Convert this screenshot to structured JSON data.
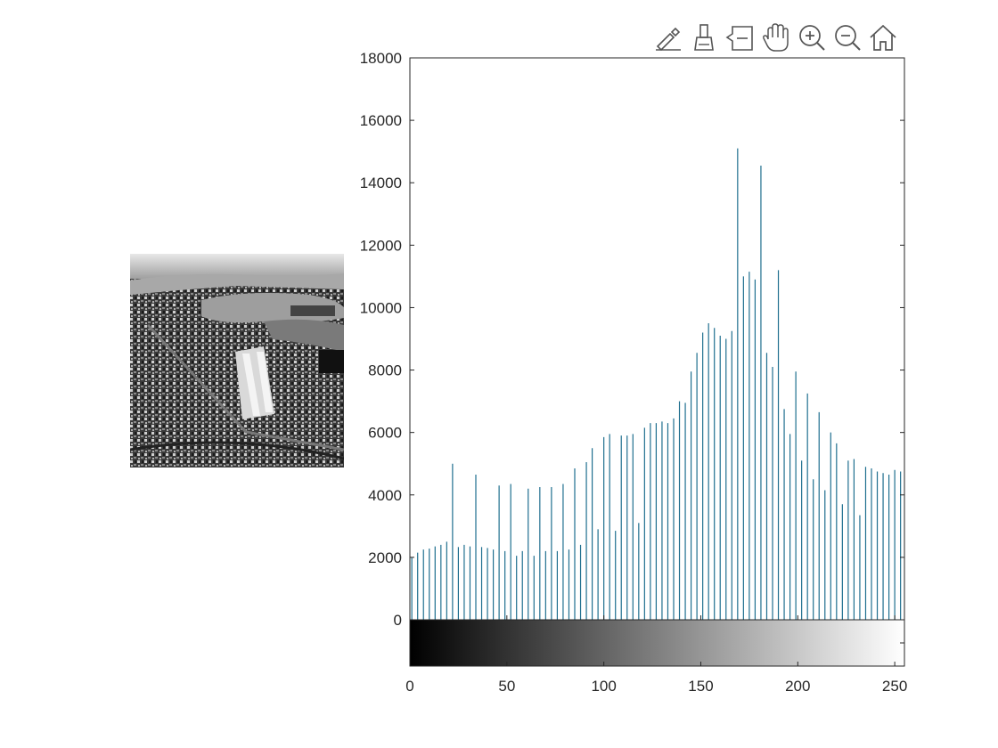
{
  "toolbar": {
    "buttons": [
      {
        "name": "brush-edit-icon"
      },
      {
        "name": "data-brush-icon"
      },
      {
        "name": "data-tips-icon"
      },
      {
        "name": "pan-icon"
      },
      {
        "name": "zoom-in-icon"
      },
      {
        "name": "zoom-out-icon"
      },
      {
        "name": "home-icon"
      }
    ]
  },
  "colors": {
    "stem": "#1f6f8f",
    "axis": "#262626"
  },
  "chart_data": {
    "type": "bar",
    "title": "",
    "xlabel": "",
    "ylabel": "",
    "xlim": [
      0,
      255
    ],
    "ylim": [
      0,
      18000
    ],
    "xticks": [
      "0",
      "50",
      "100",
      "150",
      "200",
      "250"
    ],
    "yticks": [
      "0",
      "2000",
      "4000",
      "6000",
      "8000",
      "10000",
      "12000",
      "14000",
      "16000",
      "18000"
    ],
    "colorbar": "grayscale 0-255",
    "x": [
      1,
      4,
      7,
      10,
      13,
      16,
      19,
      22,
      25,
      28,
      31,
      34,
      37,
      40,
      43,
      46,
      49,
      52,
      55,
      58,
      61,
      64,
      67,
      70,
      73,
      76,
      79,
      82,
      85,
      88,
      91,
      94,
      97,
      100,
      103,
      106,
      109,
      112,
      115,
      118,
      121,
      124,
      127,
      130,
      133,
      136,
      139,
      142,
      145,
      148,
      151,
      154,
      157,
      160,
      163,
      166,
      169,
      172,
      175,
      178,
      181,
      184,
      187,
      190,
      193,
      196,
      199,
      202,
      205,
      208,
      211,
      214,
      217,
      220,
      223,
      226,
      229,
      232,
      235,
      238,
      241,
      244,
      247,
      250,
      253
    ],
    "values": [
      2000,
      2150,
      2250,
      2280,
      2350,
      2400,
      2500,
      5000,
      2330,
      2400,
      2350,
      4650,
      2330,
      2300,
      2250,
      4300,
      2200,
      4350,
      2050,
      2200,
      4200,
      2050,
      4250,
      2200,
      4250,
      2200,
      4350,
      2250,
      4850,
      2400,
      5050,
      5500,
      2900,
      5850,
      5950,
      2850,
      5900,
      5900,
      5950,
      3100,
      6150,
      6300,
      6300,
      6350,
      6300,
      6450,
      7000,
      6950,
      7950,
      8550,
      9200,
      9500,
      9350,
      9100,
      9000,
      9250,
      15100,
      11000,
      11150,
      10900,
      14550,
      8550,
      8100,
      11200,
      6750,
      5950,
      7950,
      5100,
      7250,
      4500,
      6650,
      4150,
      6000,
      5650,
      3700,
      5100,
      5150,
      3350,
      4900,
      4850,
      4750,
      4700,
      4650,
      4800,
      4750
    ]
  }
}
